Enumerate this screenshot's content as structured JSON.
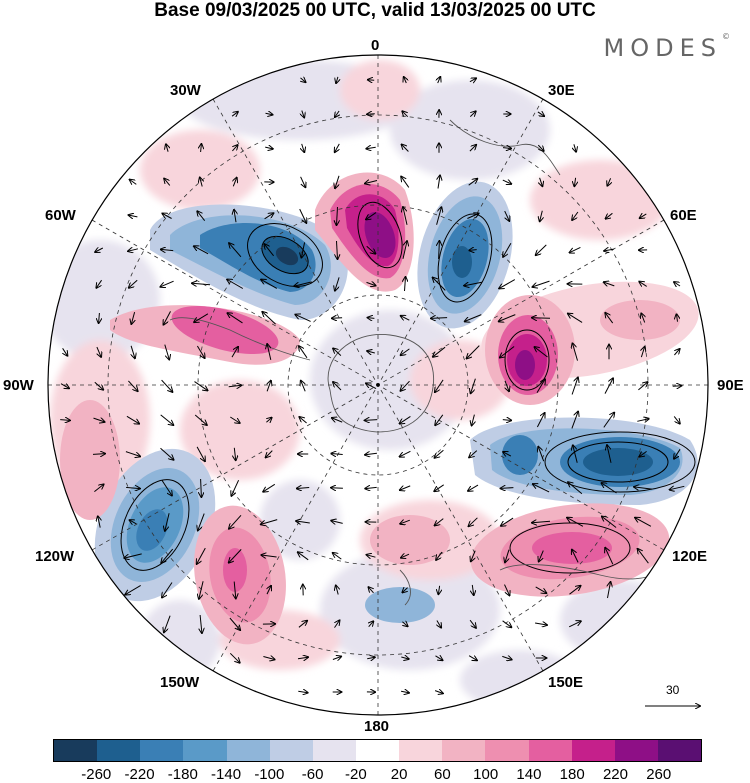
{
  "header": {
    "title": "Base 09/03/2025 00 UTC, valid 13/03/2025 00 UTC",
    "brand": "MODES",
    "brand_mark": "©"
  },
  "longitude_labels": {
    "lon_0": "0",
    "lon_30e": "30E",
    "lon_60e": "60E",
    "lon_90e": "90E",
    "lon_120e": "120E",
    "lon_150e": "150E",
    "lon_180": "180",
    "lon_150w": "150W",
    "lon_120w": "120W",
    "lon_90w": "90W",
    "lon_60w": "60W",
    "lon_30w": "30W"
  },
  "reference_vector": {
    "value": "30"
  },
  "colorbar": {
    "colors": [
      "#183b5c",
      "#1e5f8f",
      "#3a7fb5",
      "#5a9ac8",
      "#8fb5d9",
      "#bfcde5",
      "#e6e3ef",
      "#ffffff",
      "#f8d5dc",
      "#f2b3c3",
      "#ee8fb0",
      "#e45fa0",
      "#c5208b",
      "#8e0f86",
      "#5a0f72"
    ],
    "tick_labels": [
      "-260",
      "-220",
      "-180",
      "-140",
      "-100",
      "-60",
      "-20",
      "20",
      "60",
      "100",
      "140",
      "180",
      "220",
      "260"
    ]
  }
}
